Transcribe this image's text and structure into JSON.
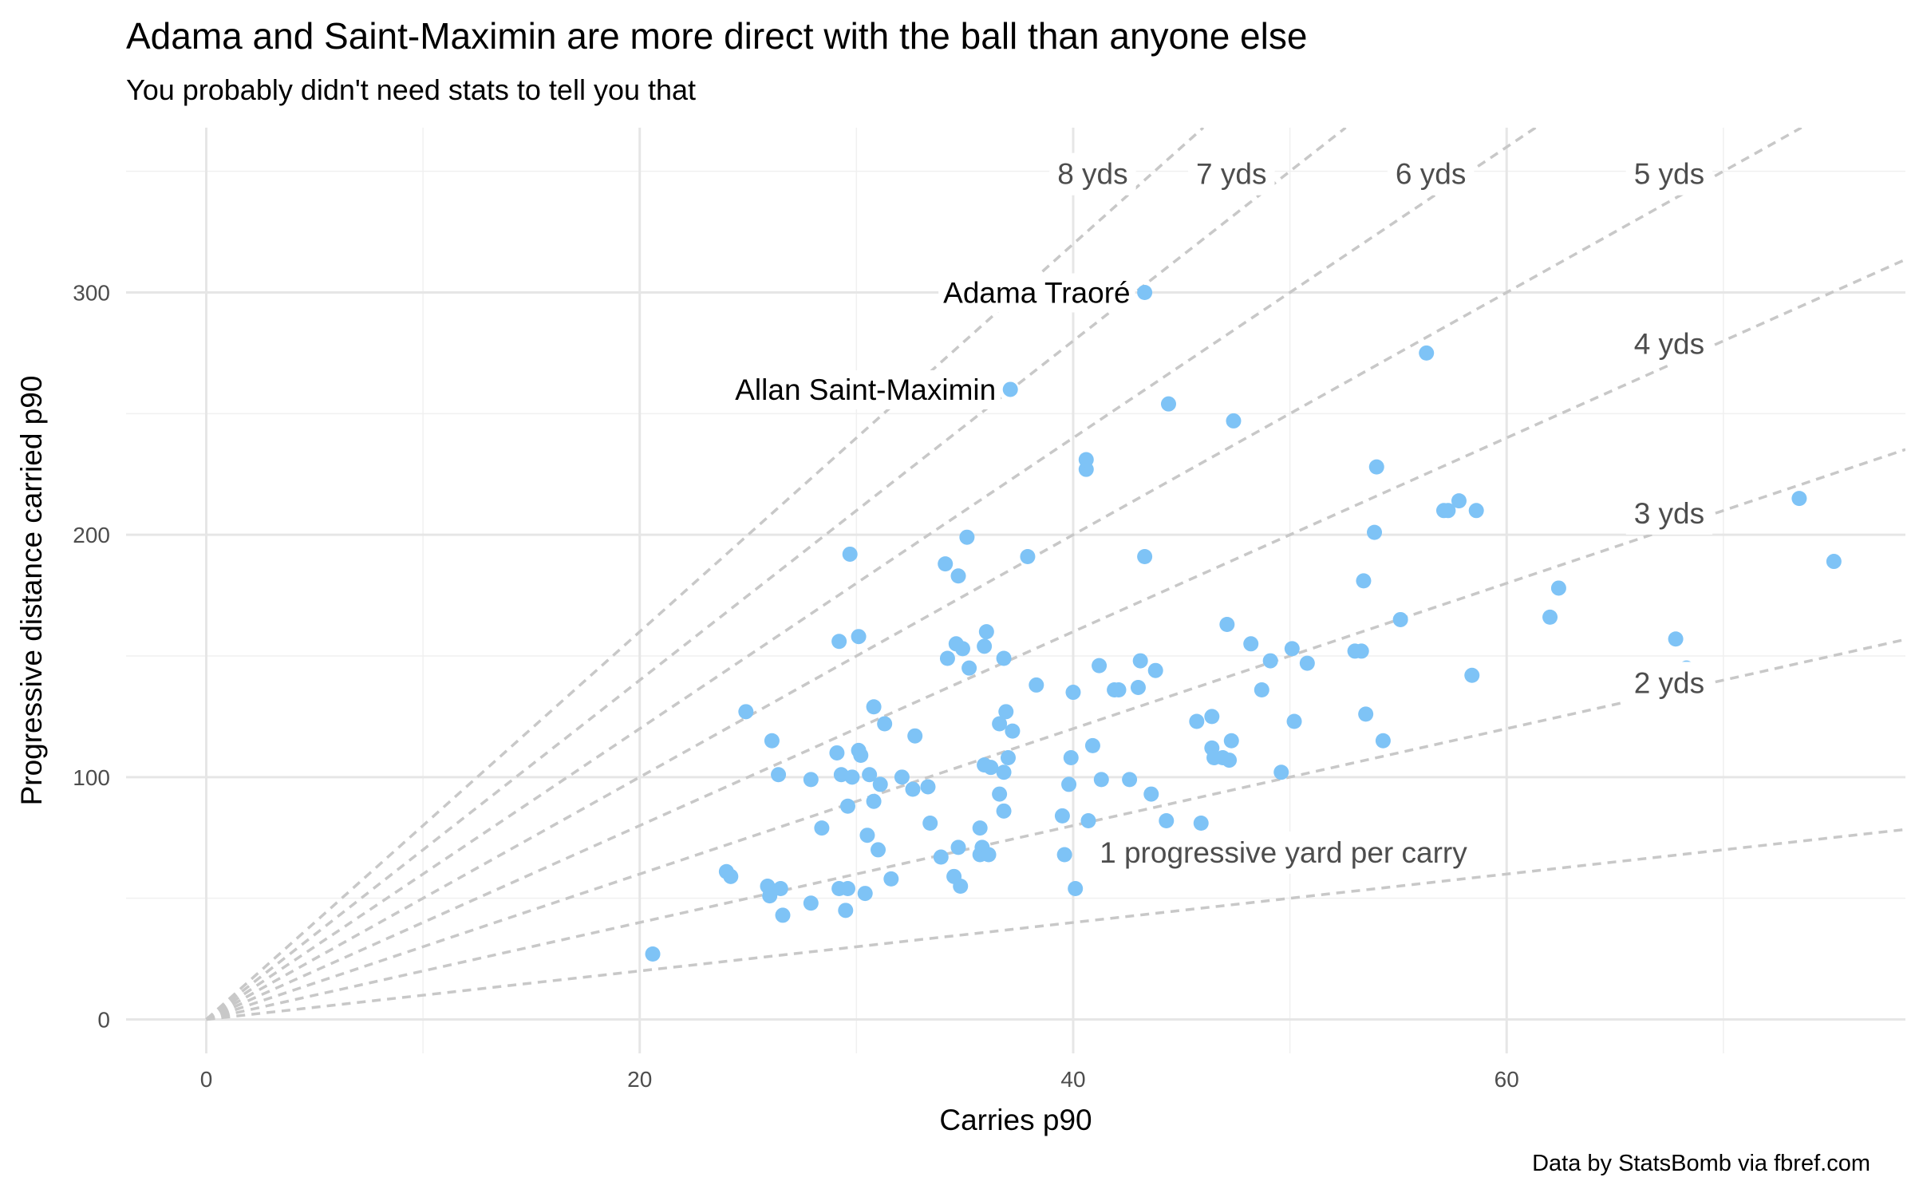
{
  "title": "Adama and Saint-Maximin are more direct with the ball than anyone else",
  "subtitle": "You probably didn't need stats to tell you that",
  "caption": "Data by StatsBomb via fbref.com",
  "chart_data": {
    "type": "scatter",
    "xlabel": "Carries p90",
    "ylabel": "Progressive distance carried p90",
    "xlim": [
      -3.7,
      78.4
    ],
    "ylim": [
      -14,
      368
    ],
    "x_ticks": [
      0,
      20,
      40,
      60
    ],
    "y_ticks": [
      0,
      100,
      200,
      300
    ],
    "grid": true,
    "point_color": "#7EC3F6",
    "ref_line_color": "#C8C8C8",
    "reference_lines": [
      {
        "slope": 1,
        "label": "1 progressive yard per carry",
        "label_at": [
          49.7,
          69
        ]
      },
      {
        "slope": 2,
        "label": "2 yds",
        "label_at": [
          67.5,
          139
        ]
      },
      {
        "slope": 3,
        "label": "3 yds",
        "label_at": [
          67.5,
          209
        ]
      },
      {
        "slope": 4,
        "label": "4 yds",
        "label_at": [
          67.5,
          279
        ]
      },
      {
        "slope": 5,
        "label": "5 yds",
        "label_at": [
          67.5,
          349
        ]
      },
      {
        "slope": 6,
        "label": "6 yds",
        "label_at": [
          56.5,
          349
        ]
      },
      {
        "slope": 7,
        "label": "7 yds",
        "label_at": [
          47.3,
          349
        ]
      },
      {
        "slope": 8,
        "label": "8 yds",
        "label_at": [
          40.9,
          349
        ]
      }
    ],
    "labeled_points": [
      {
        "x": 43.3,
        "y": 300,
        "label": "Adama Traoré"
      },
      {
        "x": 37.1,
        "y": 260,
        "label": "Allan Saint-Maximin"
      }
    ],
    "points": [
      [
        20.6,
        27
      ],
      [
        24.0,
        61
      ],
      [
        24.2,
        59
      ],
      [
        24.9,
        127
      ],
      [
        25.9,
        55
      ],
      [
        26.0,
        51
      ],
      [
        26.1,
        115
      ],
      [
        26.4,
        101
      ],
      [
        26.5,
        54
      ],
      [
        26.6,
        43
      ],
      [
        27.9,
        48
      ],
      [
        27.9,
        99
      ],
      [
        28.4,
        79
      ],
      [
        29.1,
        110
      ],
      [
        29.2,
        156
      ],
      [
        29.2,
        54
      ],
      [
        29.3,
        101
      ],
      [
        29.5,
        45
      ],
      [
        29.6,
        54
      ],
      [
        29.6,
        88
      ],
      [
        29.7,
        192
      ],
      [
        29.8,
        100
      ],
      [
        30.1,
        111
      ],
      [
        30.1,
        158
      ],
      [
        30.2,
        109
      ],
      [
        30.4,
        52
      ],
      [
        30.5,
        76
      ],
      [
        30.6,
        101
      ],
      [
        30.8,
        90
      ],
      [
        30.8,
        129
      ],
      [
        31.0,
        70
      ],
      [
        31.1,
        97
      ],
      [
        31.3,
        122
      ],
      [
        31.6,
        58
      ],
      [
        32.1,
        100
      ],
      [
        32.6,
        95
      ],
      [
        32.7,
        117
      ],
      [
        33.3,
        96
      ],
      [
        33.4,
        81
      ],
      [
        33.9,
        67
      ],
      [
        34.1,
        188
      ],
      [
        34.2,
        149
      ],
      [
        34.5,
        59
      ],
      [
        34.6,
        155
      ],
      [
        34.7,
        71
      ],
      [
        34.7,
        183
      ],
      [
        34.8,
        55
      ],
      [
        34.9,
        153
      ],
      [
        35.1,
        199
      ],
      [
        35.2,
        145
      ],
      [
        35.7,
        79
      ],
      [
        35.7,
        68
      ],
      [
        35.8,
        71
      ],
      [
        35.9,
        105
      ],
      [
        35.9,
        154
      ],
      [
        36.0,
        160
      ],
      [
        36.1,
        68
      ],
      [
        36.2,
        104
      ],
      [
        36.6,
        93
      ],
      [
        36.6,
        122
      ],
      [
        36.8,
        102
      ],
      [
        36.8,
        86
      ],
      [
        36.8,
        149
      ],
      [
        36.9,
        127
      ],
      [
        37.0,
        108
      ],
      [
        37.2,
        119
      ],
      [
        37.9,
        191
      ],
      [
        38.3,
        138
      ],
      [
        39.5,
        84
      ],
      [
        39.6,
        68
      ],
      [
        39.8,
        97
      ],
      [
        39.9,
        108
      ],
      [
        40.0,
        135
      ],
      [
        40.1,
        54
      ],
      [
        40.6,
        227
      ],
      [
        40.6,
        231
      ],
      [
        40.7,
        82
      ],
      [
        40.9,
        113
      ],
      [
        41.2,
        146
      ],
      [
        41.3,
        99
      ],
      [
        41.5,
        71
      ],
      [
        41.9,
        136
      ],
      [
        42.1,
        136
      ],
      [
        42.6,
        99
      ],
      [
        43.0,
        137
      ],
      [
        43.1,
        148
      ],
      [
        43.3,
        191
      ],
      [
        43.6,
        93
      ],
      [
        43.8,
        144
      ],
      [
        44.3,
        82
      ],
      [
        44.4,
        254
      ],
      [
        45.7,
        123
      ],
      [
        45.9,
        81
      ],
      [
        46.4,
        125
      ],
      [
        46.4,
        112
      ],
      [
        46.5,
        108
      ],
      [
        46.9,
        108
      ],
      [
        47.1,
        163
      ],
      [
        47.2,
        107
      ],
      [
        47.3,
        115
      ],
      [
        47.4,
        247
      ],
      [
        48.2,
        155
      ],
      [
        48.7,
        136
      ],
      [
        49.1,
        148
      ],
      [
        49.6,
        102
      ],
      [
        50.1,
        153
      ],
      [
        50.2,
        123
      ],
      [
        50.8,
        147
      ],
      [
        53.0,
        152
      ],
      [
        53.3,
        152
      ],
      [
        53.4,
        181
      ],
      [
        53.5,
        126
      ],
      [
        53.9,
        201
      ],
      [
        54.0,
        228
      ],
      [
        54.3,
        115
      ],
      [
        55.1,
        165
      ],
      [
        57.1,
        210
      ],
      [
        57.3,
        210
      ],
      [
        57.8,
        214
      ],
      [
        58.4,
        142
      ],
      [
        58.6,
        210
      ],
      [
        62.0,
        166
      ],
      [
        62.4,
        178
      ],
      [
        67.8,
        157
      ],
      [
        68.3,
        145
      ],
      [
        68.5,
        144
      ],
      [
        69.0,
        143
      ],
      [
        73.5,
        215
      ],
      [
        75.1,
        189
      ],
      [
        56.3,
        275
      ]
    ]
  }
}
